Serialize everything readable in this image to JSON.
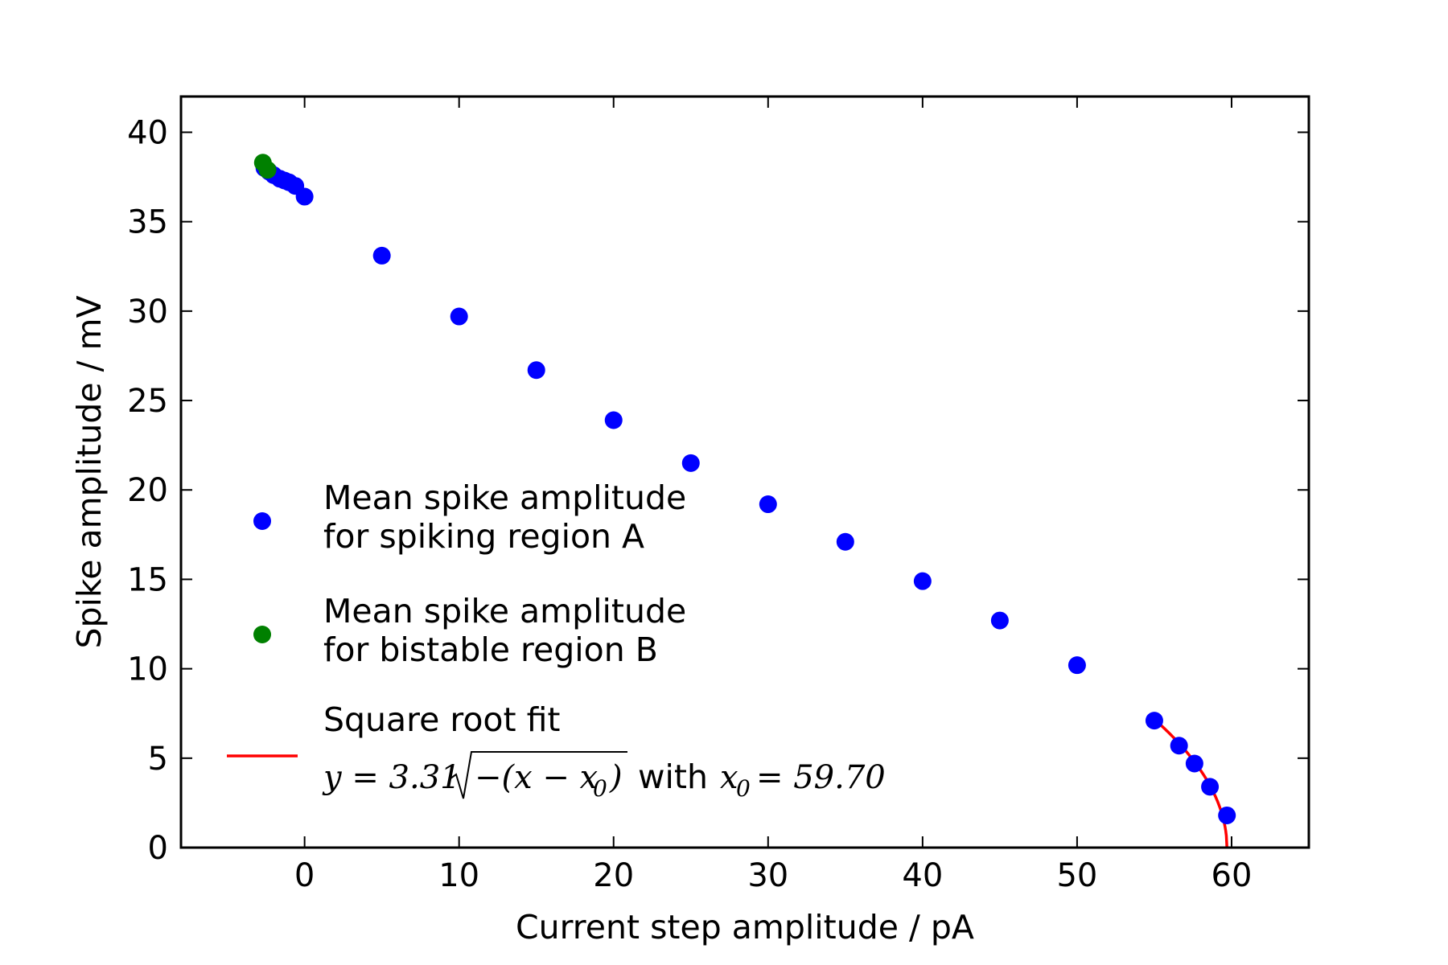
{
  "chart_data": {
    "type": "scatter",
    "title": "",
    "xlabel": "Current step amplitude / pA",
    "ylabel": "Spike amplitude / mV",
    "xlim": [
      -8,
      65
    ],
    "ylim": [
      0,
      42
    ],
    "xticks": [
      0,
      10,
      20,
      30,
      40,
      50,
      60
    ],
    "yticks": [
      0,
      5,
      10,
      15,
      20,
      25,
      30,
      35,
      40
    ],
    "grid": false,
    "legend_placement": "lower-left",
    "series": [
      {
        "name": "Mean spike amplitude for spiking region A",
        "legend_lines": [
          "Mean spike amplitude",
          "for spiking region A"
        ],
        "kind": "scatter",
        "color": "#0000ff",
        "x": [
          -2.6,
          -2.3,
          -2.0,
          -1.6,
          -1.3,
          -1.0,
          -0.6,
          0.0,
          5,
          10,
          15,
          20,
          25,
          30,
          35,
          40,
          45,
          50,
          55,
          56.6,
          57.6,
          58.6,
          59.7
        ],
        "y": [
          38.0,
          37.8,
          37.6,
          37.4,
          37.3,
          37.2,
          37.0,
          36.4,
          33.1,
          29.7,
          26.7,
          23.9,
          21.5,
          19.2,
          17.1,
          14.9,
          12.7,
          10.2,
          7.1,
          5.7,
          4.7,
          3.4,
          1.8
        ]
      },
      {
        "name": "Mean spike amplitude for bistable region B",
        "legend_lines": [
          "Mean spike amplitude",
          "for bistable region B"
        ],
        "kind": "scatter",
        "color": "#008000",
        "x": [
          -2.7,
          -2.4
        ],
        "y": [
          38.3,
          37.9
        ]
      },
      {
        "name": "Square root fit",
        "legend_lines": [
          "Square root fit"
        ],
        "formula": "y = 3.31 √−(x − x₀) with x₀ = 59.70",
        "formula_parts": {
          "lhs": "y = 3.31",
          "radicand": "−(x − x",
          "sub0": "0",
          "close": ")",
          "with": "with",
          "x0_lhs": "x",
          "x0_rhs": "= 59.70"
        },
        "kind": "line",
        "color": "#ff0000",
        "a": 3.31,
        "x0": 59.7,
        "x_range": [
          55,
          59.7
        ]
      }
    ]
  }
}
